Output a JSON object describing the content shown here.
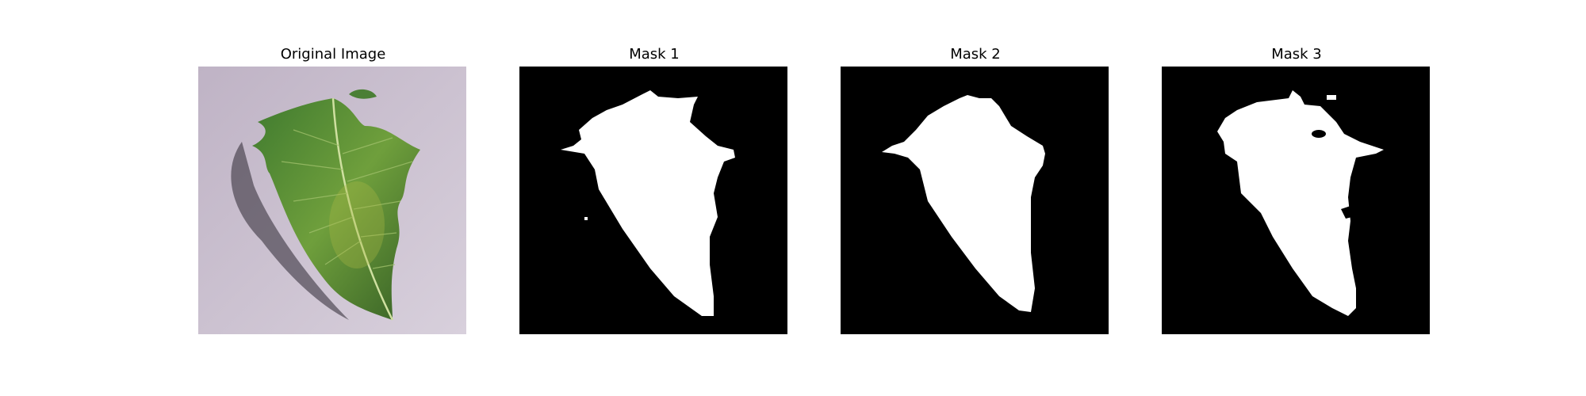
{
  "panels": [
    {
      "title": "Original Image"
    },
    {
      "title": "Mask 1"
    },
    {
      "title": "Mask 2"
    },
    {
      "title": "Mask 3"
    }
  ],
  "colors": {
    "background": "#cfc6d3",
    "leaf": "#4f8f3a",
    "mask_bg": "#000000",
    "mask_fg": "#ffffff"
  }
}
